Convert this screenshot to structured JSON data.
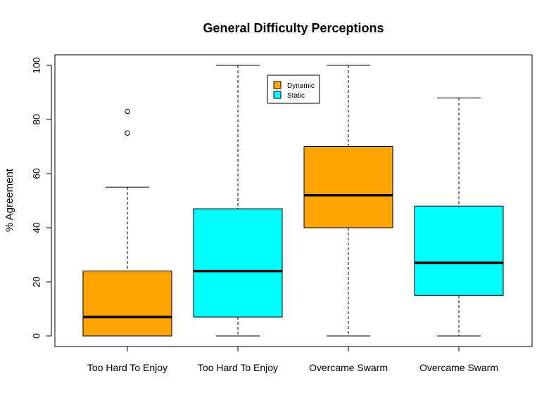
{
  "chart_data": {
    "type": "box",
    "title": "General Difficulty Perceptions",
    "xlabel": "",
    "ylabel": "% Agreement",
    "ylim": [
      -4,
      104
    ],
    "yticks": [
      0,
      20,
      40,
      60,
      80,
      100
    ],
    "grid": false,
    "legend": {
      "position": "top-center",
      "entries": [
        {
          "label": "Dynamic",
          "color": "#FFA500"
        },
        {
          "label": "Static",
          "color": "#00FFFF"
        }
      ]
    },
    "boxes": [
      {
        "category": "Too Hard To Enjoy",
        "group": "Dynamic",
        "color": "#FFA500",
        "min": 0,
        "q1": 0,
        "median": 7,
        "q3": 24,
        "max": 55,
        "outliers": [
          75,
          83
        ]
      },
      {
        "category": "Too Hard To Enjoy",
        "group": "Static",
        "color": "#00FFFF",
        "min": 0,
        "q1": 7,
        "median": 24,
        "q3": 47,
        "max": 100,
        "outliers": []
      },
      {
        "category": "Overcame Swarm",
        "group": "Dynamic",
        "color": "#FFA500",
        "min": 0,
        "q1": 40,
        "median": 52,
        "q3": 70,
        "max": 100,
        "outliers": []
      },
      {
        "category": "Overcame Swarm",
        "group": "Static",
        "color": "#00FFFF",
        "min": 0,
        "q1": 15,
        "median": 27,
        "q3": 48,
        "max": 88,
        "outliers": []
      }
    ]
  }
}
